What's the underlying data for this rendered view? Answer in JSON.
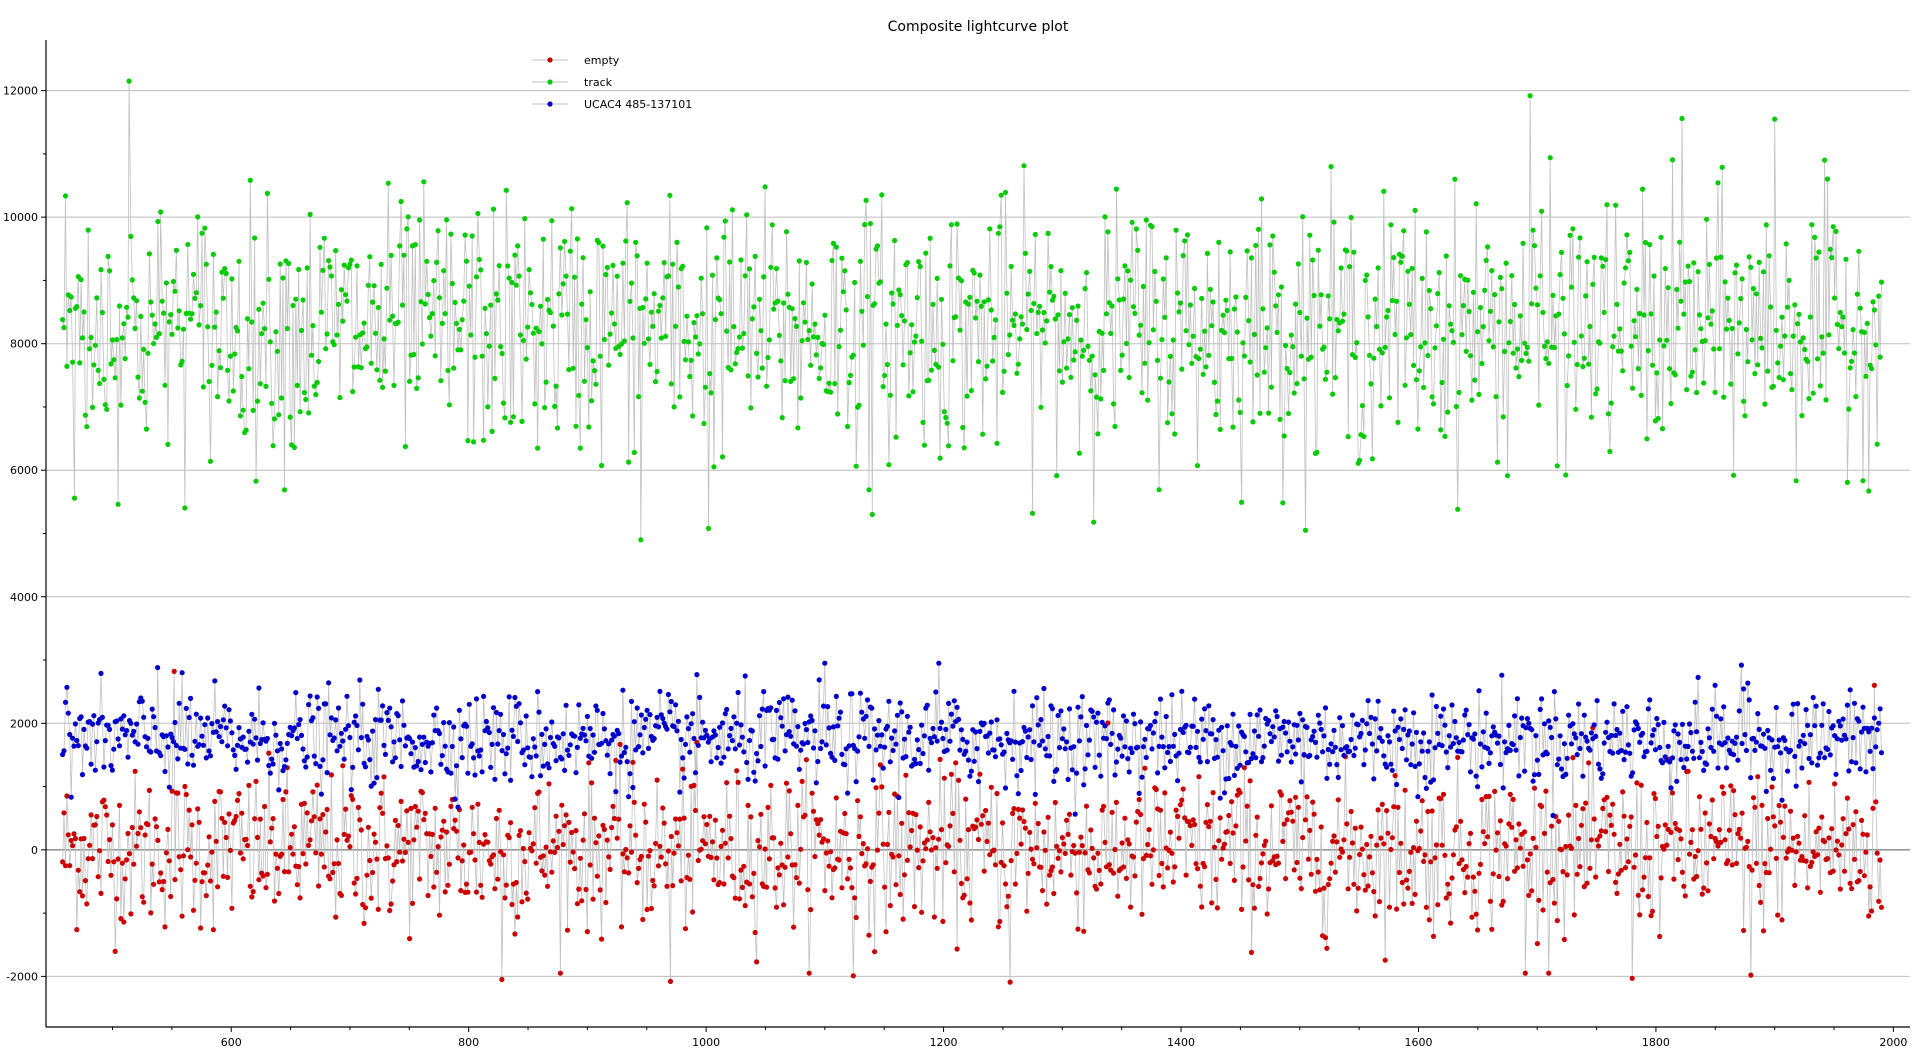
{
  "chart_data": {
    "type": "scatter",
    "title": "Composite lightcurve plot",
    "xlabel": "",
    "ylabel": "",
    "xlim": [
      444,
      2014
    ],
    "ylim": [
      -2800,
      12800
    ],
    "x_ticks": [
      600,
      800,
      1000,
      1200,
      1400,
      1600,
      1800,
      2000
    ],
    "y_ticks": [
      -2000,
      0,
      2000,
      4000,
      6000,
      8000,
      10000,
      12000
    ],
    "x_range": [
      458,
      1990
    ],
    "grid": true,
    "legend_position": "top-left",
    "connecting_line_color": "#c0c0c0",
    "series": [
      {
        "name": "empty",
        "color": "#cc0000",
        "summary": {
          "mean": 0,
          "std": 720,
          "min": -2100,
          "max": 2800
        },
        "values": [
          [
            552,
            2820
          ],
          [
            828,
            -2050
          ],
          [
            970,
            -2080
          ],
          [
            1256,
            -2090
          ],
          [
            1780,
            -2030
          ],
          [
            1880,
            -1980
          ],
          [
            1984,
            2600
          ],
          [
            1124,
            -1990
          ],
          [
            1690,
            -1950
          ]
        ]
      },
      {
        "name": "track",
        "color": "#00cc00",
        "summary": {
          "mean": 8250,
          "std": 1150,
          "min": 4900,
          "max": 12150
        },
        "values": [
          [
            514,
            12150
          ],
          [
            1694,
            11920
          ],
          [
            468,
            5560
          ],
          [
            945,
            4900
          ],
          [
            1002,
            5080
          ],
          [
            1140,
            5300
          ],
          [
            1822,
            11560
          ],
          [
            1900,
            11550
          ]
        ]
      },
      {
        "name": "UCAC4 485-137101",
        "color": "#0000cc",
        "summary": {
          "mean": 1750,
          "std": 420,
          "min": 380,
          "max": 2950
        },
        "values": [
          [
            1100,
            2950
          ],
          [
            1196,
            2950
          ],
          [
            1872,
            2920
          ],
          [
            538,
            2880
          ]
        ]
      }
    ]
  }
}
